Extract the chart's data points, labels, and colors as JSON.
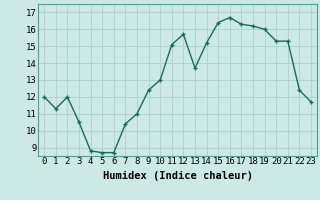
{
  "x": [
    0,
    1,
    2,
    3,
    4,
    5,
    6,
    7,
    8,
    9,
    10,
    11,
    12,
    13,
    14,
    15,
    16,
    17,
    18,
    19,
    20,
    21,
    22,
    23
  ],
  "y": [
    12.0,
    11.3,
    12.0,
    10.5,
    8.8,
    8.7,
    8.7,
    10.4,
    11.0,
    12.4,
    13.0,
    15.1,
    15.7,
    13.7,
    15.2,
    16.4,
    16.7,
    16.3,
    16.2,
    16.0,
    15.3,
    15.3,
    12.4,
    11.7
  ],
  "line_color": "#1a6b5a",
  "marker": "+",
  "marker_size": 3.5,
  "marker_lw": 1.0,
  "bg_color": "#cce9e5",
  "grid_color": "#b0d4d0",
  "xlabel": "Humidex (Indice chaleur)",
  "xlim": [
    -0.5,
    23.5
  ],
  "ylim": [
    8.5,
    17.5
  ],
  "yticks": [
    9,
    10,
    11,
    12,
    13,
    14,
    15,
    16,
    17
  ],
  "xticks": [
    0,
    1,
    2,
    3,
    4,
    5,
    6,
    7,
    8,
    9,
    10,
    11,
    12,
    13,
    14,
    15,
    16,
    17,
    18,
    19,
    20,
    21,
    22,
    23
  ],
  "tick_label_fontsize": 6.5,
  "xlabel_fontsize": 7.5,
  "line_width": 1.0
}
